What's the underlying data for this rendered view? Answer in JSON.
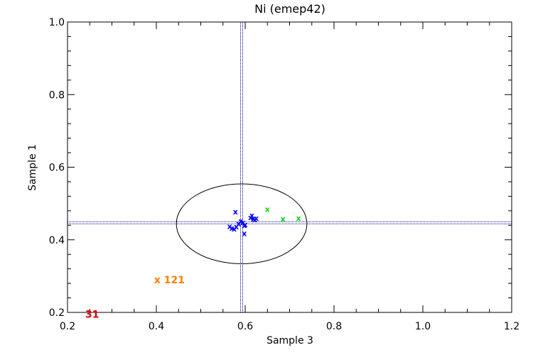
{
  "chart_data": {
    "type": "scatter",
    "title": "Ni (emep42)",
    "xlabel": "Sample 3",
    "ylabel": "Sample 1",
    "xlim": [
      0.2,
      1.2
    ],
    "ylim": [
      0.2,
      1.0
    ],
    "xticks": [
      "0.2",
      "0.4",
      "0.6",
      "0.8",
      "1.0",
      "1.2"
    ],
    "yticks": [
      "0.2",
      "0.4",
      "0.6",
      "0.8",
      "1.0"
    ],
    "reference_lines": {
      "x": 0.592,
      "y": 0.447
    },
    "ellipse": {
      "center": [
        0.592,
        0.444
      ],
      "semi_axes": [
        0.147,
        0.11
      ]
    },
    "series": [
      {
        "color": "#0000ff",
        "points": [
          [
            0.565,
            0.438
          ],
          [
            0.57,
            0.433
          ],
          [
            0.575,
            0.431
          ],
          [
            0.58,
            0.437
          ],
          [
            0.585,
            0.445
          ],
          [
            0.59,
            0.452
          ],
          [
            0.595,
            0.448
          ],
          [
            0.598,
            0.441
          ],
          [
            0.6,
            0.443
          ],
          [
            0.578,
            0.478
          ],
          [
            0.598,
            0.418
          ],
          [
            0.612,
            0.462
          ],
          [
            0.615,
            0.468
          ],
          [
            0.618,
            0.458
          ],
          [
            0.622,
            0.456
          ],
          [
            0.625,
            0.46
          ]
        ]
      },
      {
        "color": "#00dd00",
        "points": [
          [
            0.65,
            0.485
          ],
          [
            0.685,
            0.458
          ],
          [
            0.72,
            0.46
          ]
        ]
      }
    ],
    "annotations": [
      {
        "text": "x 121",
        "x": 0.395,
        "y": 0.29,
        "color": "#ff7f00"
      },
      {
        "text": "31",
        "x": 0.24,
        "y": 0.195,
        "color": "#dd0000"
      }
    ],
    "grid": false
  }
}
